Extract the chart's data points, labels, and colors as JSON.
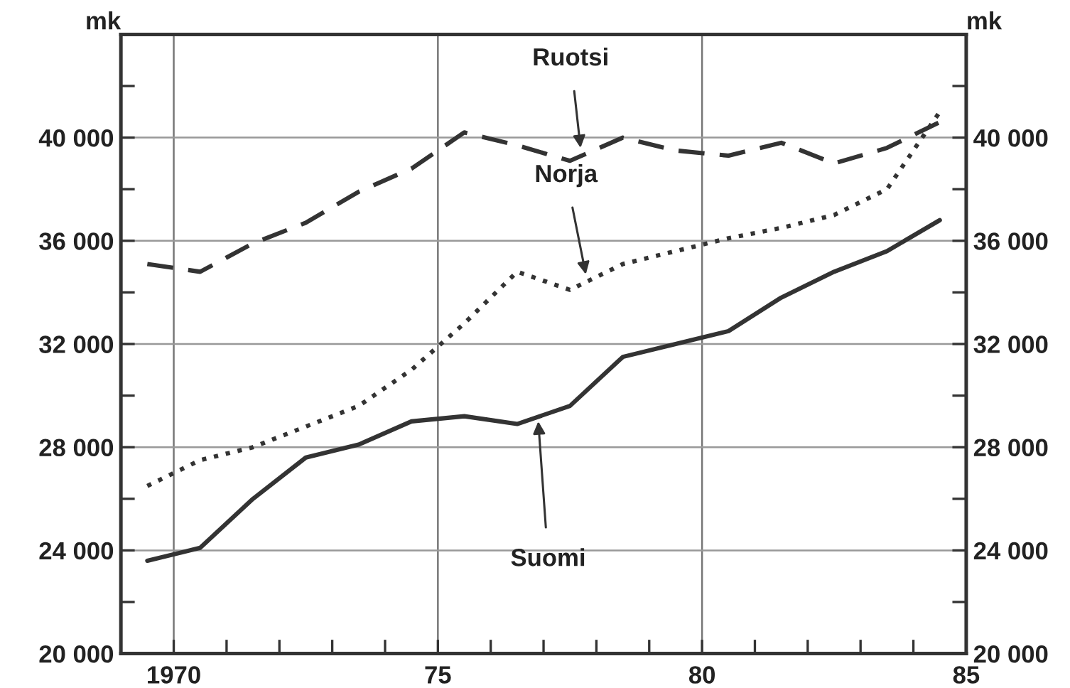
{
  "chart_data": {
    "type": "line",
    "ylabel": "mk",
    "y2label": "mk",
    "x": [
      1969.5,
      1970.5,
      1971.5,
      1972.5,
      1973.5,
      1974.5,
      1975.5,
      1976.5,
      1977.5,
      1978.5,
      1979.5,
      1980.5,
      1981.5,
      1982.5,
      1983.5,
      1984.5
    ],
    "series": [
      {
        "color": "#333333",
        "line_style": "dashed",
        "values": [
          35100,
          34800,
          35900,
          36700,
          37900,
          38800,
          40200,
          39700,
          39100,
          40000,
          39500,
          39300,
          39800,
          39000,
          39600,
          40600
        ]
      },
      {
        "color": "#333333",
        "line_style": "dotted",
        "values": [
          26500,
          27500,
          28000,
          28800,
          29600,
          31000,
          32800,
          34800,
          34100,
          35100,
          35600,
          36100,
          36500,
          37000,
          38000,
          41000
        ]
      },
      {
        "color": "#333333",
        "line_style": "solid",
        "values": [
          23600,
          24100,
          26000,
          27600,
          28100,
          29000,
          29200,
          28900,
          29600,
          31500,
          32000,
          32500,
          33800,
          34800,
          35600,
          36800
        ]
      }
    ],
    "annotations": [
      {
        "text": "Ruotsi",
        "x": 1977.7,
        "y": 39600
      },
      {
        "text": "Norja",
        "x": 1977.8,
        "y": 34700
      },
      {
        "text": "Suomi",
        "x": 1976.9,
        "y": 29000
      }
    ],
    "xlim": [
      1969,
      1985
    ],
    "xticks": [
      {
        "value": 1970,
        "label": "1970"
      },
      {
        "value": 1971,
        "label": null
      },
      {
        "value": 1972,
        "label": null
      },
      {
        "value": 1973,
        "label": null
      },
      {
        "value": 1974,
        "label": null
      },
      {
        "value": 1975,
        "label": "75"
      },
      {
        "value": 1976,
        "label": null
      },
      {
        "value": 1977,
        "label": null
      },
      {
        "value": 1978,
        "label": null
      },
      {
        "value": 1979,
        "label": null
      },
      {
        "value": 1980,
        "label": "80"
      },
      {
        "value": 1981,
        "label": null
      },
      {
        "value": 1982,
        "label": null
      },
      {
        "value": 1983,
        "label": null
      },
      {
        "value": 1984,
        "label": null
      },
      {
        "value": 1985,
        "label": "85"
      }
    ],
    "ylim": [
      20000,
      44000
    ],
    "yticks": [
      {
        "value": 20000,
        "label": "20 000"
      },
      {
        "value": 22000,
        "label": null
      },
      {
        "value": 24000,
        "label": "24 000"
      },
      {
        "value": 26000,
        "label": null
      },
      {
        "value": 28000,
        "label": "28 000"
      },
      {
        "value": 30000,
        "label": null
      },
      {
        "value": 32000,
        "label": "32 000"
      },
      {
        "value": 34000,
        "label": null
      },
      {
        "value": 36000,
        "label": "36 000"
      },
      {
        "value": 38000,
        "label": null
      },
      {
        "value": 40000,
        "label": "40 000"
      },
      {
        "value": 42000,
        "label": null
      }
    ],
    "y2lim": [
      20000,
      44000
    ],
    "y2ticks": [
      {
        "value": 20000,
        "label": "20 000"
      },
      {
        "value": 22000,
        "label": null
      },
      {
        "value": 24000,
        "label": "24 000"
      },
      {
        "value": 26000,
        "label": null
      },
      {
        "value": 28000,
        "label": "28 000"
      },
      {
        "value": 30000,
        "label": null
      },
      {
        "value": 32000,
        "label": "32 000"
      },
      {
        "value": 34000,
        "label": null
      },
      {
        "value": 36000,
        "label": "36 000"
      },
      {
        "value": 38000,
        "label": null
      },
      {
        "value": 40000,
        "label": "40 000"
      },
      {
        "value": 42000,
        "label": null
      }
    ],
    "grid": true
  }
}
